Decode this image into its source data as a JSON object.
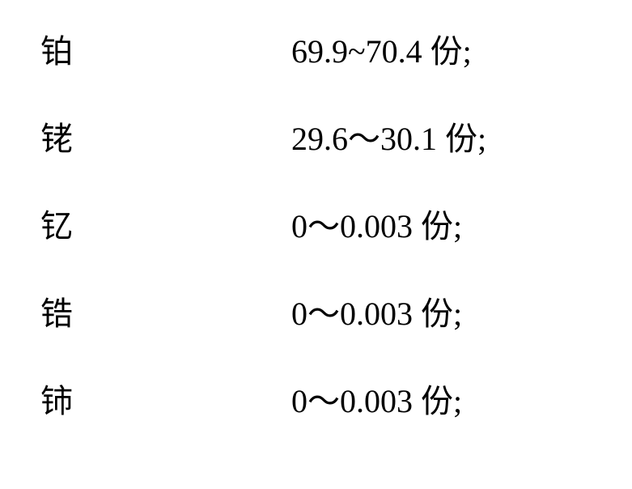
{
  "table": {
    "font_family": "SimSun",
    "font_size_pt": 30,
    "text_color": "#000000",
    "background_color": "#ffffff",
    "rows": [
      {
        "label": "铂",
        "value": "69.9~70.4 份;"
      },
      {
        "label": "铑",
        "value": "29.6～30.1 份;"
      },
      {
        "label": "钇",
        "value": "0～0.003 份;"
      },
      {
        "label": "锆",
        "value": "0～0.003 份;"
      },
      {
        "label": "铈",
        "value": "0～0.003 份;"
      }
    ]
  }
}
